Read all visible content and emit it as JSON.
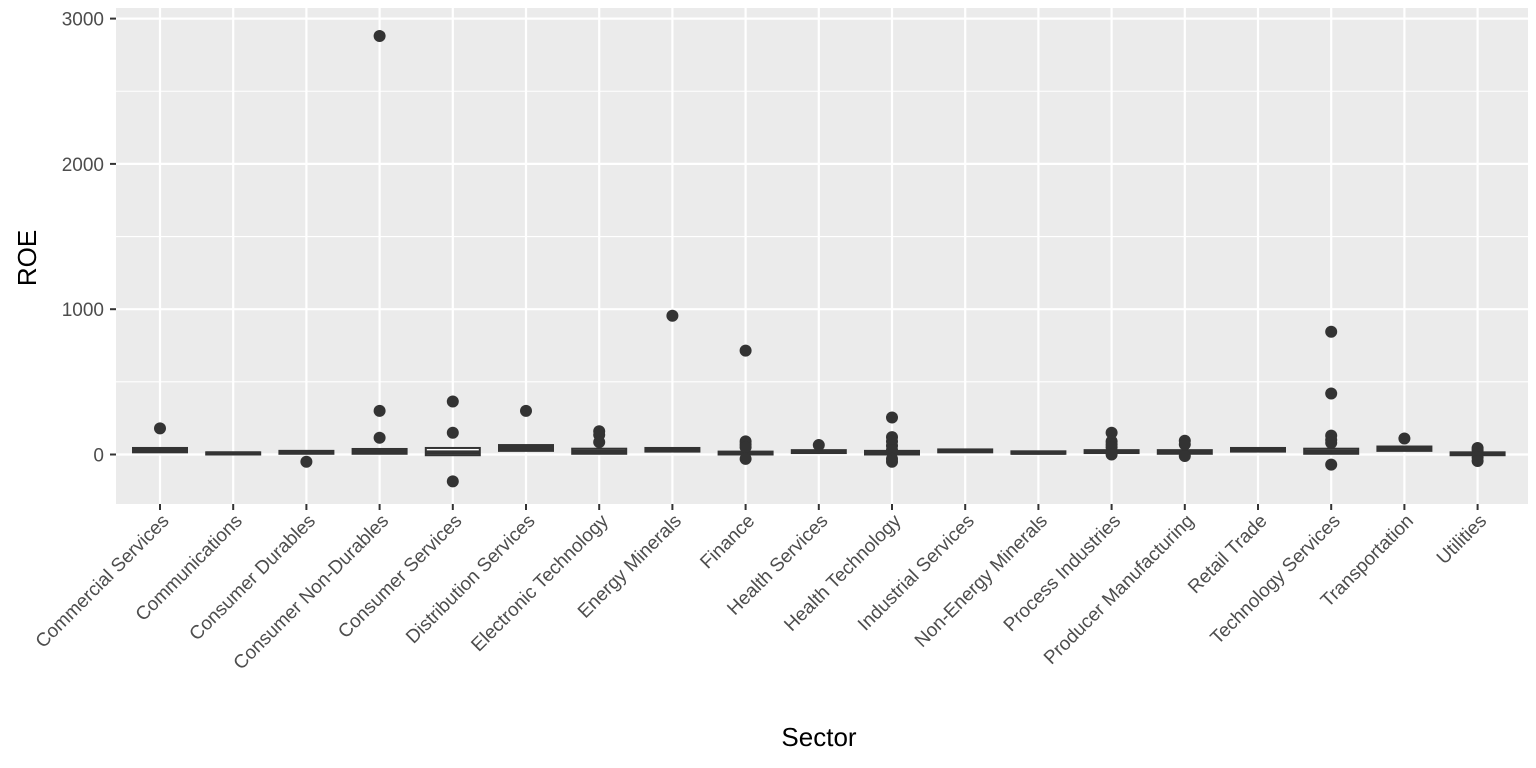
{
  "chart_data": {
    "type": "boxplot",
    "xlabel": "Sector",
    "ylabel": "ROE",
    "ylim": [
      -340,
      3030
    ],
    "yticks": [
      0,
      1000,
      2000,
      3000
    ],
    "ytick_labels": [
      "0",
      "1000",
      "2000",
      "3000"
    ],
    "grid": true,
    "panel_background": "#ebebeb",
    "grid_color": "#ffffff",
    "mark_color": "#333333",
    "categories": [
      "Commercial Services",
      "Communications",
      "Consumer Durables",
      "Consumer Non-Durables",
      "Consumer Services",
      "Distribution Services",
      "Electronic Technology",
      "Energy Minerals",
      "Finance",
      "Health Services",
      "Health Technology",
      "Industrial Services",
      "Non-Energy Minerals",
      "Process Industries",
      "Producer Manufacturing",
      "Retail Trade",
      "Technology Services",
      "Transportation",
      "Utilities"
    ],
    "boxes": [
      {
        "q1": 15,
        "median": 28,
        "q3": 45,
        "outliers": [
          180
        ]
      },
      {
        "q1": 0,
        "median": 8,
        "q3": 15,
        "outliers": []
      },
      {
        "q1": 5,
        "median": 15,
        "q3": 25,
        "outliers": [
          -50
        ]
      },
      {
        "q1": 5,
        "median": 18,
        "q3": 38,
        "outliers": [
          300,
          115,
          2880
        ]
      },
      {
        "q1": -5,
        "median": 15,
        "q3": 45,
        "outliers": [
          365,
          150,
          -185
        ]
      },
      {
        "q1": 25,
        "median": 45,
        "q3": 65,
        "outliers": [
          300
        ]
      },
      {
        "q1": 5,
        "median": 20,
        "q3": 40,
        "outliers": [
          160,
          135,
          85
        ]
      },
      {
        "q1": 20,
        "median": 30,
        "q3": 45,
        "outliers": [
          955
        ]
      },
      {
        "q1": 0,
        "median": 10,
        "q3": 20,
        "outliers": [
          715,
          90,
          70,
          50,
          -30
        ]
      },
      {
        "q1": 10,
        "median": 20,
        "q3": 30,
        "outliers": [
          65
        ]
      },
      {
        "q1": 0,
        "median": 15,
        "q3": 25,
        "outliers": [
          255,
          120,
          90,
          60,
          30,
          -30,
          -50
        ]
      },
      {
        "q1": 15,
        "median": 25,
        "q3": 35,
        "outliers": []
      },
      {
        "q1": 5,
        "median": 12,
        "q3": 22,
        "outliers": []
      },
      {
        "q1": 10,
        "median": 20,
        "q3": 30,
        "outliers": [
          150,
          90,
          70,
          50,
          0
        ]
      },
      {
        "q1": 5,
        "median": 18,
        "q3": 30,
        "outliers": [
          95,
          70,
          -10
        ]
      },
      {
        "q1": 20,
        "median": 30,
        "q3": 45,
        "outliers": []
      },
      {
        "q1": 5,
        "median": 20,
        "q3": 40,
        "outliers": [
          845,
          420,
          130,
          100,
          80,
          -70
        ]
      },
      {
        "q1": 25,
        "median": 40,
        "q3": 55,
        "outliers": [
          110
        ]
      },
      {
        "q1": -5,
        "median": 5,
        "q3": 15,
        "outliers": [
          45,
          30,
          -20,
          -45
        ]
      }
    ]
  }
}
